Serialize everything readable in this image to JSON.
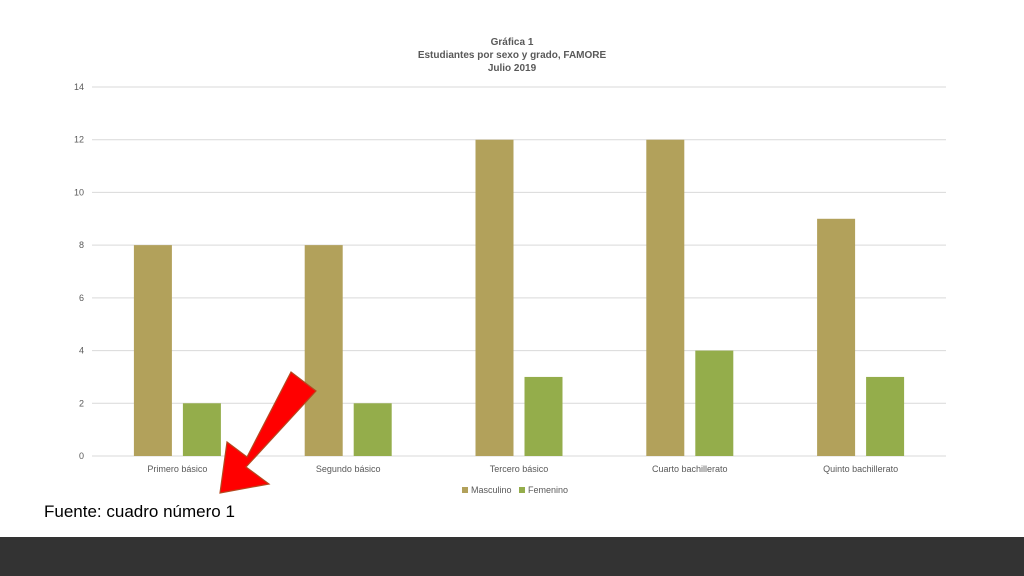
{
  "colors": {
    "masculino": "#b2a15b",
    "femenino": "#94ad4b",
    "gridline": "#d9d9d9",
    "axis_text": "#595959",
    "arrow_fill": "#ff0000",
    "arrow_stroke": "#b5481f",
    "footer": "#333333"
  },
  "source_note": "Fuente: cuadro número 1",
  "arrow_icon": "red-arrow-icon",
  "chart_data": {
    "type": "bar",
    "title_lines": [
      "Gráfica 1",
      "Estudiantes por sexo y grado, FAMORE",
      "Julio 2019"
    ],
    "categories": [
      "Primero básico",
      "Segundo básico",
      "Tercero básico",
      "Cuarto bachillerato",
      "Quinto bachillerato"
    ],
    "series": [
      {
        "name": "Masculino",
        "values": [
          8,
          8,
          12,
          12,
          9
        ]
      },
      {
        "name": "Femenino",
        "values": [
          2,
          2,
          3,
          4,
          3
        ]
      }
    ],
    "ylim": [
      0,
      14
    ],
    "yticks": [
      "0",
      "2",
      "4",
      "6",
      "8",
      "10",
      "12",
      "14"
    ],
    "grid": true,
    "legend_position": "bottom"
  }
}
